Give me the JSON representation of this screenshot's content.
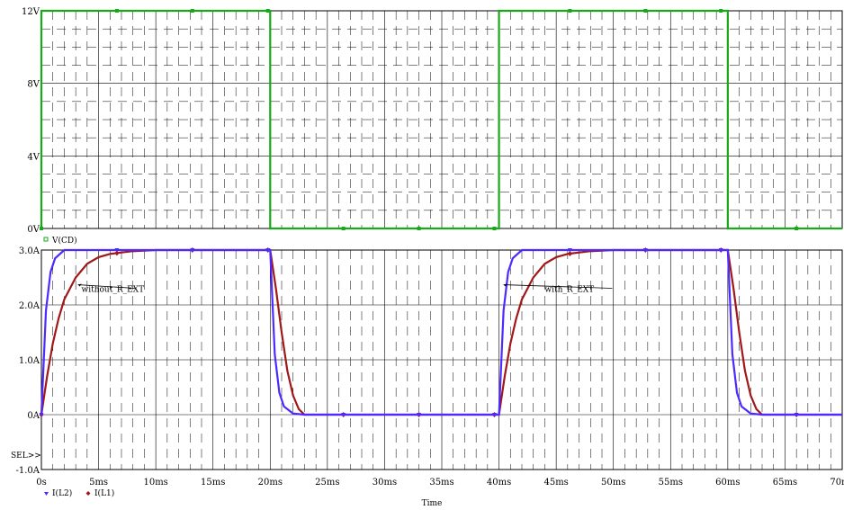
{
  "chart_data": [
    {
      "type": "line",
      "panel": "top",
      "ylim": [
        0,
        12
      ],
      "y_ticks": [
        "0V",
        "4V",
        "8V",
        "12V"
      ],
      "grid": "dashed",
      "series": [
        {
          "name": "V(CD)",
          "color": "#1aa81a",
          "marker": "square",
          "x": [
            0,
            0,
            20,
            20,
            40,
            40,
            60,
            60,
            70
          ],
          "y": [
            0,
            12,
            12,
            0,
            0,
            12,
            12,
            0,
            0
          ]
        }
      ]
    },
    {
      "type": "line",
      "panel": "bottom",
      "xlim": [
        0,
        70
      ],
      "ylim": [
        -1,
        3
      ],
      "x_ticks": [
        "0s",
        "5ms",
        "10ms",
        "15ms",
        "20ms",
        "25ms",
        "30ms",
        "35ms",
        "40ms",
        "45ms",
        "50ms",
        "55ms",
        "60ms",
        "65ms",
        "70ms"
      ],
      "y_ticks": [
        "-1.0A",
        "0A",
        "1.0A",
        "2.0A",
        "3.0A"
      ],
      "xlabel": "Time",
      "grid": "dashed",
      "series": [
        {
          "name": "I(L2)",
          "color": "#4b2bff",
          "marker": "triangle-down",
          "x": [
            0,
            0.4,
            0.8,
            1.2,
            2,
            3,
            20,
            20.4,
            20.8,
            21.2,
            22,
            23,
            40,
            40.4,
            40.8,
            41.2,
            42,
            43,
            60,
            60.4,
            60.8,
            61.2,
            62,
            63,
            70
          ],
          "y": [
            0,
            1.9,
            2.6,
            2.85,
            3.0,
            3.0,
            3.0,
            1.1,
            0.4,
            0.15,
            0.02,
            0,
            0,
            1.9,
            2.6,
            2.85,
            3.0,
            3.0,
            3.0,
            1.1,
            0.4,
            0.15,
            0.02,
            0,
            0
          ]
        },
        {
          "name": "I(L1)",
          "color": "#a01818",
          "marker": "diamond",
          "x": [
            0,
            0.5,
            1,
            1.5,
            2,
            3,
            4,
            5,
            6,
            8,
            10,
            20,
            20.5,
            21,
            21.5,
            22,
            22.5,
            23,
            40,
            40.5,
            41,
            41.5,
            42,
            43,
            44,
            45,
            46,
            48,
            50,
            60,
            60.5,
            61,
            61.5,
            62,
            62.5,
            63,
            70
          ],
          "y": [
            0,
            0.7,
            1.3,
            1.75,
            2.1,
            2.5,
            2.75,
            2.87,
            2.93,
            2.98,
            3.0,
            3.0,
            2.3,
            1.5,
            0.8,
            0.35,
            0.1,
            0,
            0,
            0.7,
            1.3,
            1.75,
            2.1,
            2.5,
            2.75,
            2.87,
            2.93,
            2.98,
            3.0,
            3.0,
            2.3,
            1.5,
            0.8,
            0.35,
            0.1,
            0,
            0
          ]
        }
      ],
      "annotations": [
        {
          "text": "without_R_EXT",
          "x": 3.5,
          "y": 2.5,
          "arrow_to": [
            3.2,
            2.45
          ]
        },
        {
          "text": "with_R_EXT",
          "x": 44,
          "y": 2.5,
          "arrow_to": [
            40.4,
            2.45
          ]
        }
      ],
      "sel_marker": "SEL>>"
    }
  ]
}
